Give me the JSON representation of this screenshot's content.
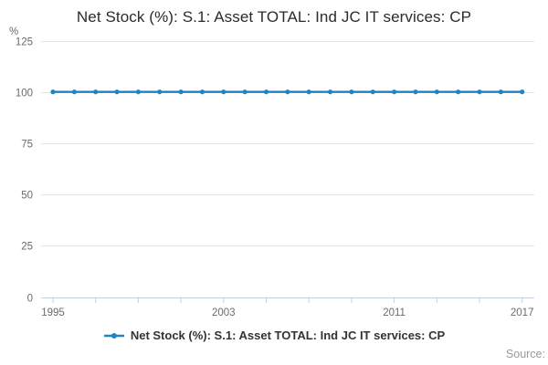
{
  "title": "Net Stock (%): S.1: Asset TOTAL: Ind JC IT services: CP",
  "y_axis_unit": "%",
  "source_label": "Source:",
  "legend": {
    "label": "Net Stock (%): S.1: Asset TOTAL: Ind JC IT services: CP"
  },
  "colors": {
    "line": "#1f83c4",
    "grid": "#e3e3e3",
    "axis": "#c5d1e4",
    "tick_text": "#6b6b6b",
    "title_text": "#2b2b2b",
    "legend_text": "#333333",
    "source_text": "#9b9b9b"
  },
  "chart_data": {
    "type": "line",
    "title": "Net Stock (%): S.1: Asset TOTAL: Ind JC IT services: CP",
    "xlabel": "",
    "ylabel": "%",
    "ylim": [
      0,
      125
    ],
    "yticks": [
      0,
      25,
      50,
      75,
      100,
      125
    ],
    "x": [
      1995,
      1996,
      1997,
      1998,
      1999,
      2000,
      2001,
      2002,
      2003,
      2004,
      2005,
      2006,
      2007,
      2008,
      2009,
      2010,
      2011,
      2012,
      2013,
      2014,
      2015,
      2016,
      2017
    ],
    "xticks_labeled": [
      1995,
      2003,
      2011,
      2017
    ],
    "xticks_minor_every": 2,
    "series": [
      {
        "name": "Net Stock (%): S.1: Asset TOTAL: Ind JC IT services: CP",
        "values": [
          100,
          100,
          100,
          100,
          100,
          100,
          100,
          100,
          100,
          100,
          100,
          100,
          100,
          100,
          100,
          100,
          100,
          100,
          100,
          100,
          100,
          100,
          100
        ]
      }
    ],
    "grid": "horizontal",
    "legend_position": "bottom",
    "marker": "dot"
  }
}
